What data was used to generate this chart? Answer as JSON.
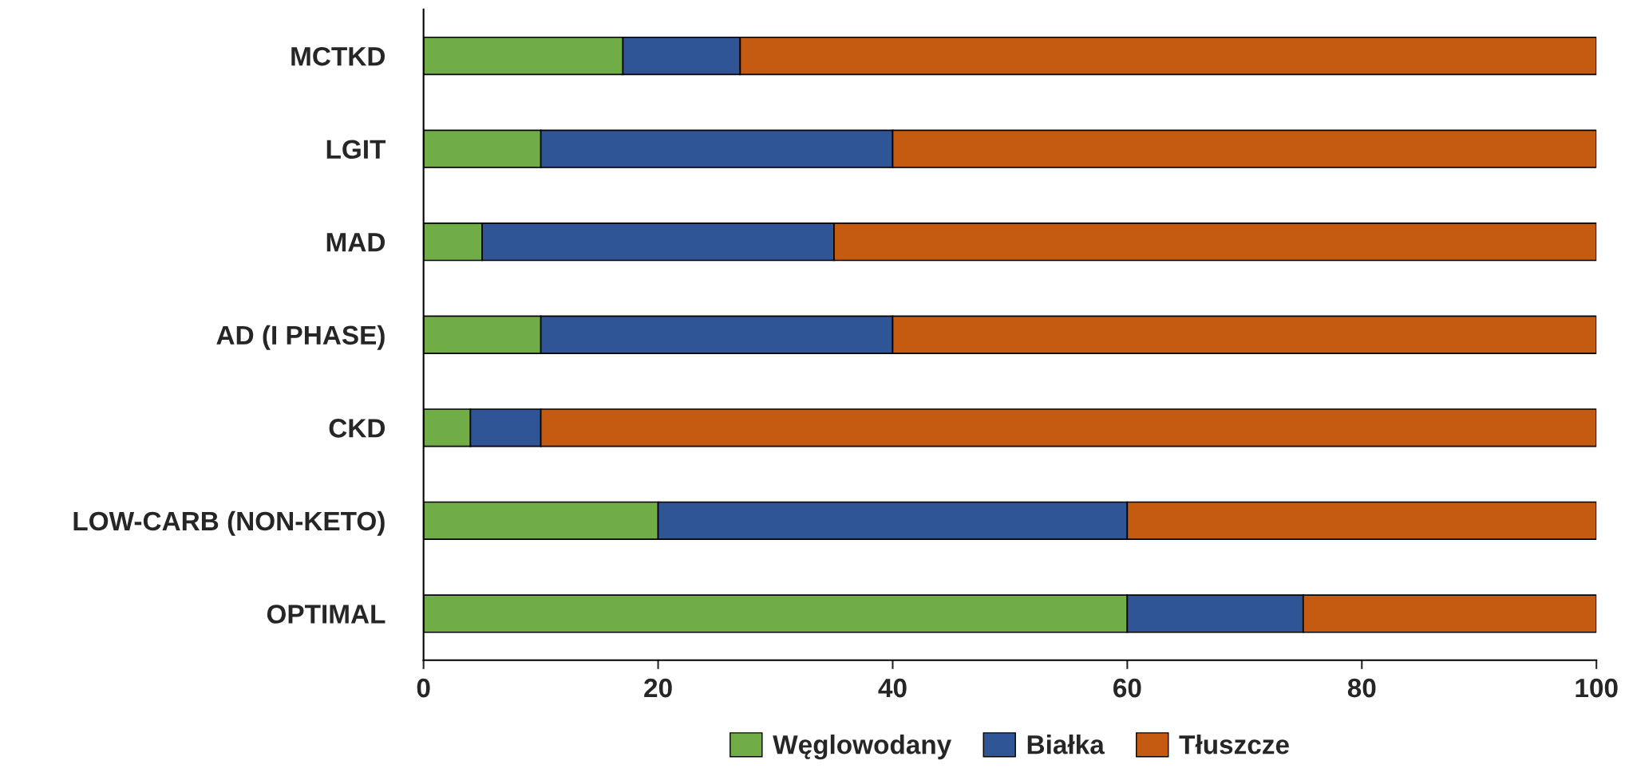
{
  "chart_data": {
    "type": "bar",
    "orientation": "horizontal",
    "stacked": true,
    "categories": [
      "MCTKD",
      "LGIT",
      "MAD",
      "AD (I PHASE)",
      "CKD",
      "LOW-CARB (NON-KETO)",
      "OPTIMAL"
    ],
    "series": [
      {
        "name": "Węglowodany",
        "color": "#70ad47",
        "values": [
          17,
          10,
          5,
          10,
          4,
          20,
          60
        ]
      },
      {
        "name": "Białka",
        "color": "#2f5597",
        "values": [
          10,
          30,
          30,
          30,
          6,
          40,
          15
        ]
      },
      {
        "name": "Tłuszcze",
        "color": "#c55a11",
        "values": [
          73,
          60,
          65,
          60,
          90,
          40,
          25
        ]
      }
    ],
    "xlim": [
      0,
      100
    ],
    "xticks": [
      0,
      20,
      40,
      60,
      80,
      100
    ],
    "grid": false,
    "legend": "bottom"
  }
}
